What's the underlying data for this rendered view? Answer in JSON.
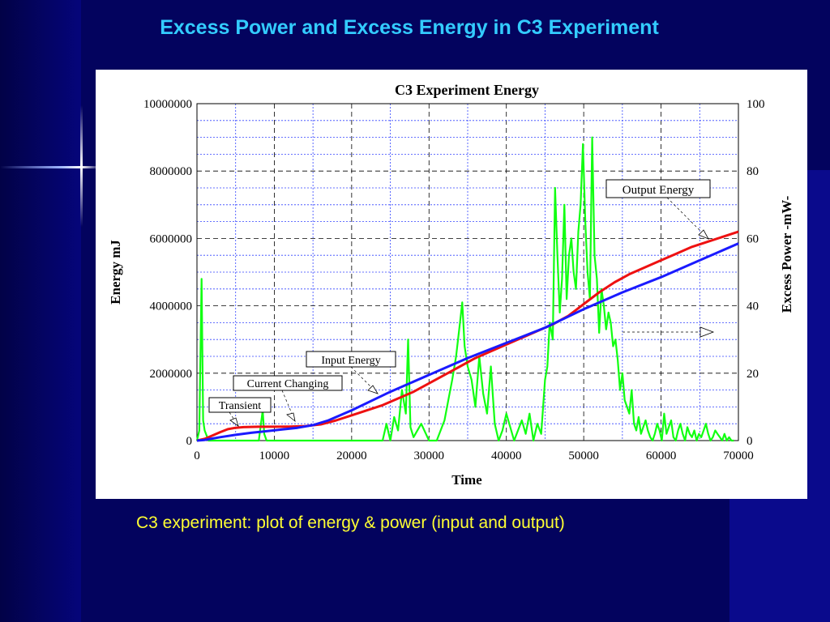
{
  "slide": {
    "title": "Excess Power and Excess Energy in C3 Experiment",
    "caption": "C3 experiment: plot of energy & power (input and output)"
  },
  "chart_data": {
    "type": "line",
    "title": "C3 Experiment Energy",
    "xlabel": "Time",
    "ylabel": "Energy  mJ",
    "y2label": "Excess Power -mW-",
    "xlim": [
      0,
      70000
    ],
    "ylim": [
      0,
      10000000
    ],
    "y2lim": [
      0,
      100
    ],
    "xticks": [
      "0",
      "10000",
      "20000",
      "30000",
      "40000",
      "50000",
      "60000",
      "70000"
    ],
    "yticks": [
      "0",
      "2000000",
      "4000000",
      "6000000",
      "8000000",
      "10000000"
    ],
    "y2ticks": [
      "0",
      "20",
      "40",
      "60",
      "80",
      "100"
    ],
    "grid": true,
    "series": [
      {
        "name": "Input Energy",
        "color": "#1a1aff",
        "axis": "left",
        "x": [
          0,
          1000,
          3000,
          5000,
          7000,
          9000,
          11000,
          13000,
          15000,
          17000,
          20000,
          25000,
          30000,
          35000,
          40000,
          45000,
          50000,
          55000,
          60000,
          65000,
          70000
        ],
        "y": [
          0,
          20000,
          100000,
          170000,
          230000,
          280000,
          330000,
          380000,
          460000,
          600000,
          900000,
          1450000,
          1950000,
          2450000,
          2900000,
          3350000,
          3900000,
          4400000,
          4850000,
          5350000,
          5850000
        ]
      },
      {
        "name": "Output Energy",
        "color": "#ee1111",
        "axis": "left",
        "x": [
          0,
          1000,
          2000,
          3000,
          4000,
          5000,
          6000,
          8000,
          10000,
          12000,
          14000,
          16000,
          18000,
          20000,
          22000,
          24000,
          26000,
          28000,
          30000,
          32000,
          34000,
          36000,
          38000,
          40000,
          42000,
          44000,
          46000,
          48000,
          50000,
          52000,
          54000,
          56000,
          58000,
          60000,
          62000,
          64000,
          66000,
          68000,
          70000
        ],
        "y": [
          0,
          50000,
          150000,
          250000,
          340000,
          380000,
          400000,
          410000,
          410000,
          415000,
          430000,
          480000,
          600000,
          750000,
          900000,
          1050000,
          1250000,
          1450000,
          1700000,
          1950000,
          2200000,
          2450000,
          2650000,
          2850000,
          3050000,
          3250000,
          3450000,
          3700000,
          4050000,
          4400000,
          4700000,
          4950000,
          5150000,
          5350000,
          5550000,
          5750000,
          5900000,
          6050000,
          6200000
        ]
      },
      {
        "name": "Excess Power",
        "color": "#11ff11",
        "axis": "right",
        "x": [
          0,
          300,
          600,
          800,
          1000,
          1500,
          2000,
          3000,
          4000,
          5000,
          6000,
          7000,
          8000,
          8500,
          8700,
          9000,
          9500,
          10000,
          15000,
          20000,
          24000,
          24500,
          25000,
          25500,
          26000,
          26500,
          27000,
          27300,
          27600,
          28000,
          29000,
          30000,
          30500,
          31000,
          32000,
          32500,
          33000,
          33500,
          34000,
          34300,
          34600,
          35000,
          35500,
          36000,
          36500,
          37000,
          37500,
          38000,
          38500,
          39000,
          39500,
          40000,
          41000,
          42000,
          42500,
          43000,
          43500,
          44000,
          44500,
          45000,
          45300,
          45600,
          46000,
          46300,
          46600,
          46900,
          47200,
          47500,
          47800,
          48100,
          48400,
          48700,
          49000,
          49300,
          49600,
          49900,
          50200,
          50500,
          50800,
          51100,
          51400,
          51700,
          52000,
          52300,
          52600,
          52900,
          53200,
          53500,
          53800,
          54100,
          54400,
          54700,
          55000,
          55300,
          55600,
          55900,
          56200,
          56500,
          56800,
          57100,
          57400,
          57700,
          58000,
          58300,
          58600,
          58900,
          59200,
          59500,
          59800,
          60100,
          60400,
          60700,
          61000,
          61300,
          61600,
          61900,
          62200,
          62500,
          62800,
          63100,
          63400,
          63700,
          64000,
          64300,
          64600,
          64900,
          65200,
          65500,
          65800,
          66100,
          66400,
          66700,
          67000,
          67300,
          67600,
          67900,
          68200,
          68500,
          68800,
          69100,
          69400
        ],
        "y": [
          0,
          3,
          48,
          6,
          3,
          0,
          0,
          0,
          0,
          0,
          0,
          0,
          0,
          9,
          2,
          0,
          0,
          0,
          0,
          0,
          0,
          5,
          0,
          7,
          3,
          15,
          8,
          30,
          4,
          1,
          5,
          0,
          0,
          0,
          6,
          12,
          18,
          25,
          35,
          41,
          28,
          22,
          18,
          10,
          25,
          14,
          8,
          22,
          5,
          0,
          3,
          8,
          0,
          6,
          2,
          8,
          0,
          5,
          2,
          18,
          22,
          35,
          30,
          75,
          55,
          38,
          48,
          70,
          42,
          55,
          60,
          50,
          45,
          62,
          70,
          88,
          65,
          50,
          42,
          90,
          55,
          48,
          32,
          45,
          40,
          33,
          38,
          35,
          28,
          30,
          24,
          15,
          20,
          12,
          10,
          8,
          15,
          5,
          3,
          7,
          2,
          4,
          6,
          3,
          1,
          0,
          2,
          5,
          3,
          0,
          8,
          2,
          4,
          6,
          1,
          0,
          3,
          5,
          2,
          0,
          4,
          2,
          1,
          3,
          0,
          2,
          1,
          3,
          5,
          2,
          0,
          1,
          3,
          2,
          1,
          0,
          2,
          0,
          1,
          0,
          0
        ]
      }
    ],
    "annotations": [
      "Output Energy",
      "Input Energy",
      "Current Changing",
      "Transient"
    ]
  }
}
